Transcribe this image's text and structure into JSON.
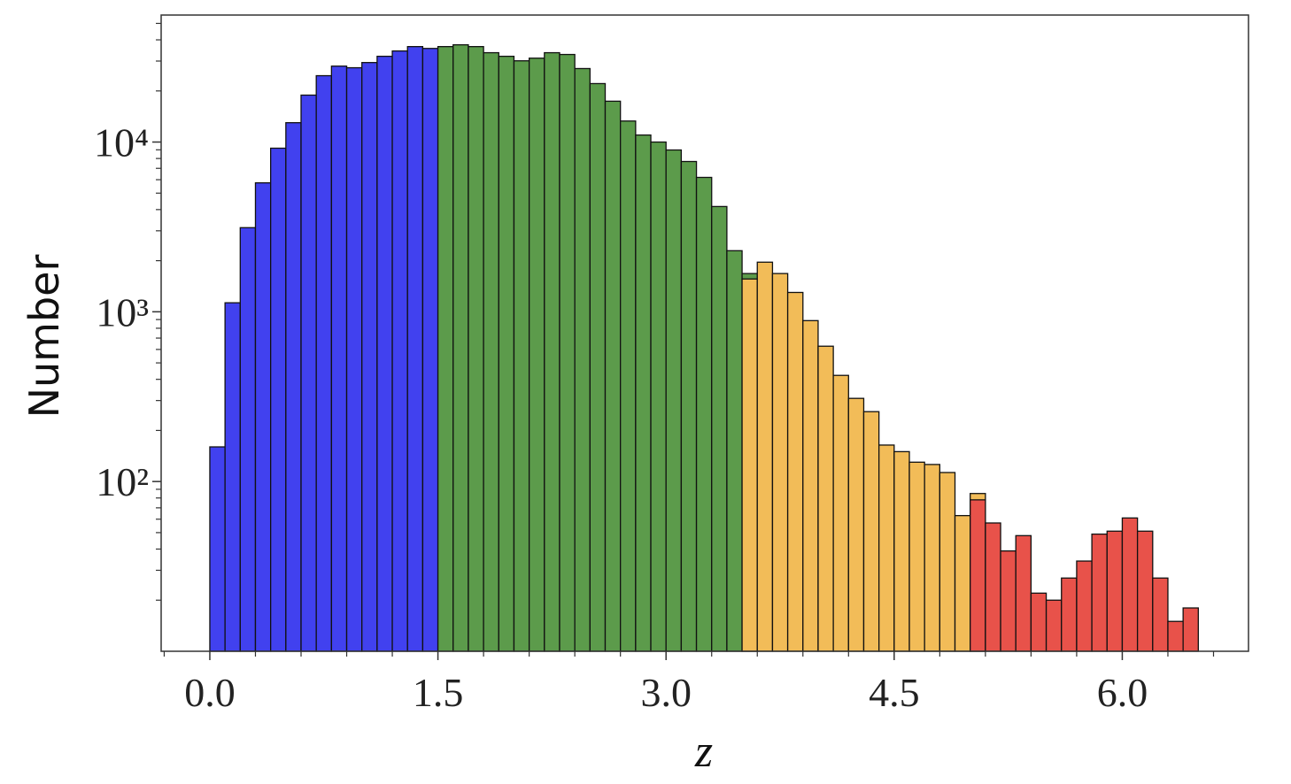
{
  "chart_data": {
    "type": "histogram",
    "x_label": "z",
    "y_label": "Number",
    "log_y": true,
    "minor_ticks": true,
    "xlim": [
      -0.32,
      6.83
    ],
    "ylim": [
      10,
      56000
    ],
    "xticks": [
      {
        "value": 0,
        "label": "0.0"
      },
      1.5,
      {
        "value": 3,
        "label": "3.0"
      },
      4.5,
      {
        "value": 6,
        "label": "6.0"
      }
    ],
    "yticks": [
      {
        "value": 100,
        "label": "10²"
      },
      {
        "value": 1000,
        "label": "10³"
      },
      {
        "value": 10000,
        "label": "10⁴"
      }
    ],
    "series": [
      {
        "color": "#4141ef",
        "bins": [
          0,
          0.1,
          0.2,
          0.3,
          0.4,
          0.5,
          0.6,
          0.7,
          0.8,
          0.9,
          1.0,
          1.1,
          1.2,
          1.3,
          1.4,
          1.5
        ],
        "values": [
          160,
          1130,
          3130,
          5750,
          9200,
          13000,
          18900,
          24600,
          28000,
          27400,
          29400,
          32000,
          34400,
          36500,
          35600
        ]
      },
      {
        "color": "#5c9b4b",
        "bins": [
          1.5,
          1.6,
          1.7,
          1.8,
          1.9,
          2.0,
          2.1,
          2.2,
          2.3,
          2.4,
          2.5,
          2.6,
          2.7,
          2.8,
          2.9,
          3.0,
          3.1,
          3.2,
          3.3,
          3.4,
          3.5,
          3.6
        ],
        "values": [
          36500,
          37400,
          36500,
          33600,
          32000,
          30100,
          31200,
          33600,
          32800,
          27100,
          22100,
          17400,
          13300,
          11000,
          10000,
          8980,
          7680,
          6190,
          4170,
          2290,
          1680
        ]
      },
      {
        "color": "#f2bc58",
        "bins": [
          3.5,
          3.6,
          3.7,
          3.8,
          3.9,
          4.0,
          4.1,
          4.2,
          4.3,
          4.4,
          4.5,
          4.6,
          4.7,
          4.8,
          4.9,
          5.0,
          5.1
        ],
        "values": [
          1560,
          1960,
          1680,
          1300,
          887,
          627,
          422,
          309,
          258,
          164,
          150,
          130,
          126,
          113,
          63,
          85
        ]
      },
      {
        "color": "#e8524a",
        "bins": [
          5.0,
          5.1,
          5.2,
          5.3,
          5.4,
          5.5,
          5.6,
          5.7,
          5.8,
          5.9,
          6.0,
          6.1,
          6.2,
          6.3,
          6.4,
          6.5
        ],
        "values": [
          78,
          57,
          39,
          48,
          22,
          20,
          27,
          34,
          49,
          51,
          61,
          51,
          27,
          15,
          18
        ]
      }
    ]
  }
}
